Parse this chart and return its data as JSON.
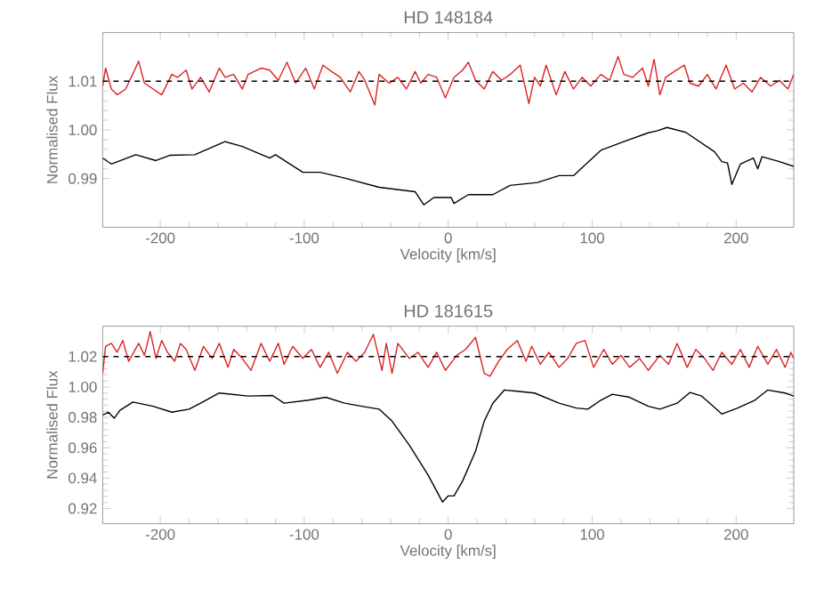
{
  "chart_data": [
    {
      "type": "line",
      "title": "HD 148184",
      "xlabel": "Velocity [km/s]",
      "ylabel": "Normalised Flux",
      "xlim": [
        -240,
        240
      ],
      "ylim": [
        0.98,
        1.02
      ],
      "xticks": [
        -200,
        -100,
        0,
        100,
        200
      ],
      "yticks": [
        0.99,
        {
          "value": 1.0,
          "label": "1.00"
        },
        1.01
      ],
      "ref_lines": [
        {
          "axis": "y",
          "value": 1.01,
          "color": "#000000",
          "line_style": "dashed"
        }
      ],
      "series": [
        {
          "color": "#dd2222",
          "x": [
            -240,
            -238,
            -234,
            -230,
            -224,
            -215,
            -211,
            -205,
            -199,
            -192,
            -188,
            -182,
            -178,
            -172,
            -166,
            -159,
            -155,
            -149,
            -143,
            -139,
            -130,
            -124,
            -118,
            -112,
            -106,
            -99,
            -93,
            -87,
            -81,
            -75,
            -68,
            -62,
            -58,
            -51,
            -48,
            -41,
            -35,
            -29,
            -23,
            -19,
            -14,
            -8,
            -2,
            4,
            10,
            14,
            19,
            25,
            31,
            37,
            43,
            50,
            56,
            60,
            64,
            68,
            75,
            81,
            87,
            93,
            99,
            106,
            112,
            118,
            122,
            128,
            135,
            139,
            143,
            147,
            151,
            157,
            164,
            168,
            174,
            180,
            186,
            193,
            199,
            205,
            211,
            217,
            224,
            230,
            236,
            240
          ],
          "values": [
            1.009,
            1.0127,
            1.0084,
            1.0072,
            1.0084,
            1.0141,
            1.0096,
            1.0084,
            1.0072,
            1.0114,
            1.0108,
            1.0123,
            1.0084,
            1.0108,
            1.0078,
            1.0127,
            1.0108,
            1.0114,
            1.0084,
            1.0114,
            1.0127,
            1.0123,
            1.0102,
            1.0139,
            1.0096,
            1.0127,
            1.0084,
            1.0133,
            1.012,
            1.0108,
            1.0078,
            1.012,
            1.0102,
            1.0051,
            1.0114,
            1.0096,
            1.0108,
            1.0084,
            1.012,
            1.0096,
            1.0114,
            1.0108,
            1.0066,
            1.0108,
            1.0123,
            1.0139,
            1.0102,
            1.0084,
            1.012,
            1.0102,
            1.0114,
            1.0133,
            1.0054,
            1.0108,
            1.009,
            1.0133,
            1.0072,
            1.012,
            1.0084,
            1.0108,
            1.009,
            1.0114,
            1.0102,
            1.0151,
            1.0114,
            1.0108,
            1.0127,
            1.009,
            1.0145,
            1.0072,
            1.0108,
            1.012,
            1.0133,
            1.0096,
            1.009,
            1.0114,
            1.0084,
            1.0133,
            1.0084,
            1.0096,
            1.0078,
            1.0108,
            1.009,
            1.0102,
            1.0084,
            1.0114
          ]
        },
        {
          "color": "#000000",
          "x": [
            -240,
            -234,
            -217,
            -203,
            -193,
            -176,
            -155,
            -143,
            -124,
            -120,
            -101,
            -89,
            -72,
            -48,
            -23,
            -17,
            -10,
            2,
            4,
            14,
            31,
            43,
            62,
            77,
            87,
            106,
            122,
            139,
            145,
            152,
            165,
            175,
            185,
            190,
            194,
            197,
            203,
            212,
            215,
            218,
            230,
            240
          ],
          "values": [
            0.9942,
            0.993,
            0.9949,
            0.9937,
            0.9948,
            0.9949,
            0.9976,
            0.9966,
            0.9942,
            0.9949,
            0.9913,
            0.9913,
            0.9901,
            0.9882,
            0.9873,
            0.9846,
            0.9861,
            0.9861,
            0.9849,
            0.9867,
            0.9867,
            0.9886,
            0.9892,
            0.9906,
            0.9906,
            0.9958,
            0.9976,
            0.9994,
            0.9998,
            1.0005,
            0.9995,
            0.9975,
            0.9955,
            0.9935,
            0.9932,
            0.9888,
            0.993,
            0.9942,
            0.992,
            0.9945,
            0.9935,
            0.9925
          ]
        }
      ]
    },
    {
      "type": "line",
      "title": "HD 181615",
      "xlabel": "Velocity [km/s]",
      "ylabel": "Normalised Flux",
      "xlim": [
        -240,
        240
      ],
      "ylim": [
        0.91,
        1.04
      ],
      "xticks": [
        -200,
        -100,
        0,
        100,
        200
      ],
      "yticks": [
        0.92,
        0.94,
        0.96,
        0.98,
        {
          "value": 1.0,
          "label": "1.00"
        },
        1.02
      ],
      "ref_lines": [
        {
          "axis": "y",
          "value": 1.02,
          "color": "#000000",
          "line_style": "dashed"
        }
      ],
      "series": [
        {
          "color": "#dd2222",
          "x": [
            -240,
            -238,
            -234,
            -230,
            -226,
            -222,
            -215,
            -211,
            -207,
            -203,
            -199,
            -195,
            -190,
            -186,
            -182,
            -176,
            -170,
            -164,
            -159,
            -153,
            -149,
            -143,
            -137,
            -130,
            -124,
            -118,
            -114,
            -108,
            -101,
            -95,
            -89,
            -83,
            -77,
            -70,
            -64,
            -58,
            -52,
            -46,
            -43,
            -39,
            -35,
            -27,
            -21,
            -14,
            -8,
            -2,
            6,
            12,
            19,
            25,
            29,
            35,
            41,
            48,
            54,
            58,
            64,
            70,
            77,
            83,
            89,
            95,
            101,
            108,
            114,
            120,
            126,
            133,
            139,
            147,
            153,
            159,
            166,
            172,
            178,
            184,
            190,
            197,
            203,
            209,
            215,
            222,
            228,
            234,
            238,
            240
          ],
          "values": [
            1.009,
            1.0267,
            1.0287,
            1.0228,
            1.0306,
            1.0169,
            1.0287,
            1.0208,
            1.0365,
            1.0188,
            1.0306,
            1.0228,
            1.0169,
            1.0287,
            1.0247,
            1.0109,
            1.0267,
            1.0188,
            1.0287,
            1.0129,
            1.0247,
            1.0188,
            1.0109,
            1.0287,
            1.0169,
            1.0287,
            1.0149,
            1.0267,
            1.0188,
            1.0247,
            1.0129,
            1.0228,
            1.009,
            1.0228,
            1.0169,
            1.0228,
            1.0346,
            1.0109,
            1.0287,
            1.009,
            1.0287,
            1.0188,
            1.0228,
            1.0129,
            1.0228,
            1.0109,
            1.0208,
            1.0247,
            1.0326,
            1.009,
            1.007,
            1.0169,
            1.0247,
            1.0306,
            1.0169,
            1.0267,
            1.0149,
            1.0228,
            1.0129,
            1.0188,
            1.0287,
            1.0306,
            1.0129,
            1.0247,
            1.0149,
            1.0208,
            1.0129,
            1.0188,
            1.0109,
            1.0208,
            1.0149,
            1.0287,
            1.0129,
            1.0247,
            1.0188,
            1.0109,
            1.0228,
            1.0149,
            1.0247,
            1.0129,
            1.0267,
            1.0149,
            1.0247,
            1.0129,
            1.0228,
            1.0188
          ]
        },
        {
          "color": "#000000",
          "x": [
            -240,
            -236,
            -232,
            -228,
            -219,
            -205,
            -192,
            -180,
            -172,
            -159,
            -139,
            -122,
            -114,
            -97,
            -85,
            -72,
            -60,
            -48,
            -39,
            -27,
            -14,
            -4,
            0,
            4,
            10,
            19,
            25,
            31,
            39,
            48,
            60,
            77,
            89,
            97,
            106,
            114,
            126,
            139,
            147,
            159,
            168,
            176,
            184,
            190,
            201,
            213,
            222,
            234,
            240
          ],
          "values": [
            0.9814,
            0.9834,
            0.9794,
            0.9846,
            0.9901,
            0.9873,
            0.9834,
            0.9854,
            0.9893,
            0.996,
            0.994,
            0.9944,
            0.9893,
            0.9913,
            0.9932,
            0.9893,
            0.9873,
            0.9854,
            0.9775,
            0.9617,
            0.942,
            0.9243,
            0.9283,
            0.9283,
            0.9381,
            0.9578,
            0.9775,
            0.9893,
            0.998,
            0.9972,
            0.996,
            0.9893,
            0.9861,
            0.9854,
            0.9913,
            0.9952,
            0.9932,
            0.9873,
            0.9854,
            0.9893,
            0.9964,
            0.994,
            0.9873,
            0.9822,
            0.9861,
            0.9913,
            0.998,
            0.996,
            0.994
          ]
        }
      ]
    }
  ]
}
